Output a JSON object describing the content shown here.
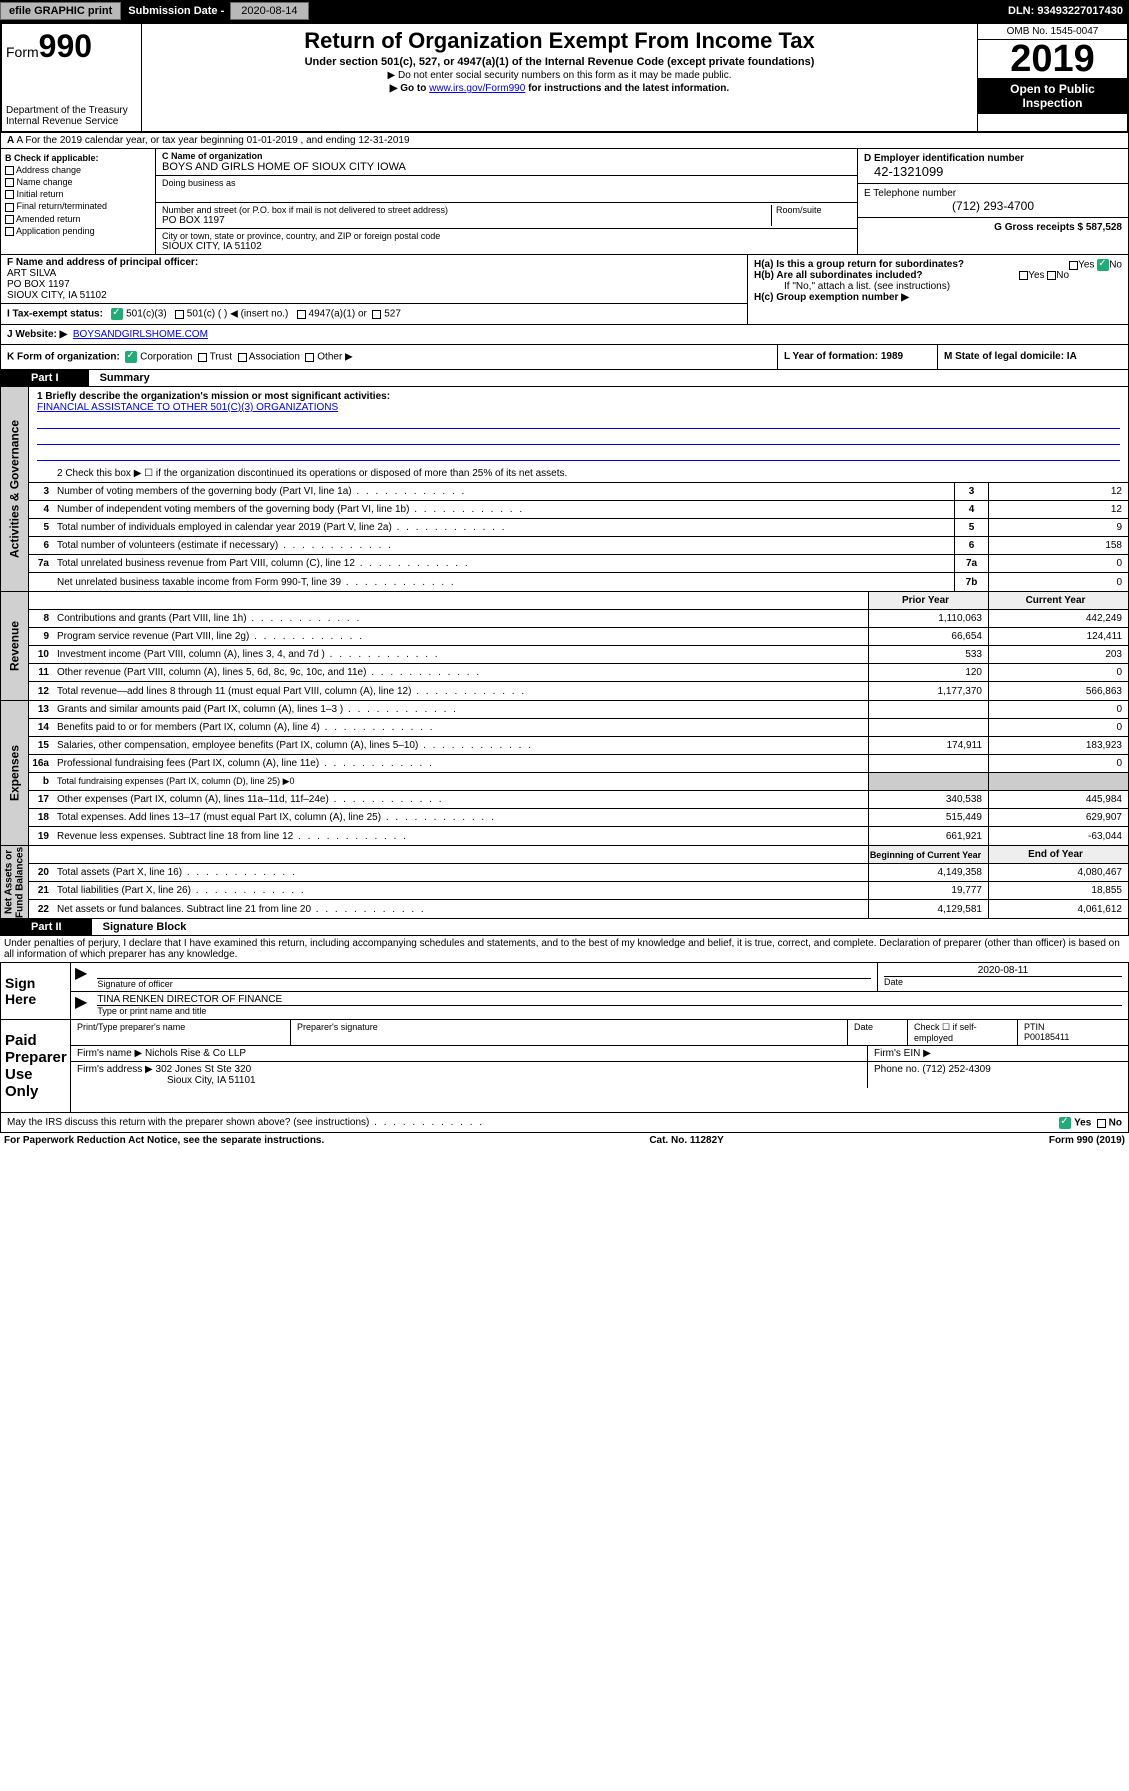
{
  "header": {
    "efile": "efile GRAPHIC print",
    "sub_label": "Submission Date - ",
    "sub_date": "2020-08-14",
    "dln": "DLN: 93493227017430"
  },
  "top": {
    "form_prefix": "Form",
    "form_num": "990",
    "dept": "Department of the Treasury\nInternal Revenue Service",
    "title": "Return of Organization Exempt From Income Tax",
    "subtitle": "Under section 501(c), 527, or 4947(a)(1) of the Internal Revenue Code (except private foundations)",
    "instr1": "▶ Do not enter social security numbers on this form as it may be made public.",
    "instr2_pre": "▶ Go to ",
    "instr2_link": "www.irs.gov/Form990",
    "instr2_post": " for instructions and the latest information.",
    "omb": "OMB No. 1545-0047",
    "year": "2019",
    "open": "Open to Public\nInspection"
  },
  "line_a": "A For the 2019 calendar year, or tax year beginning 01-01-2019    , and ending 12-31-2019",
  "col_b": {
    "hdr": "B Check if applicable:",
    "opts": [
      "Address change",
      "Name change",
      "Initial return",
      "Final return/terminated",
      "Amended return",
      "Application pending"
    ]
  },
  "col_c": {
    "name_lbl": "C Name of organization",
    "name": "BOYS AND GIRLS HOME OF SIOUX CITY IOWA",
    "dba_lbl": "Doing business as",
    "addr_lbl": "Number and street (or P.O. box if mail is not delivered to street address)",
    "room_lbl": "Room/suite",
    "addr": "PO BOX 1197",
    "city_lbl": "City or town, state or province, country, and ZIP or foreign postal code",
    "city": "SIOUX CITY, IA  51102"
  },
  "col_d": {
    "ein_lbl": "D Employer identification number",
    "ein": "42-1321099",
    "tel_lbl": "E Telephone number",
    "tel": "(712) 293-4700",
    "gross_lbl": "G Gross receipts $ 587,528"
  },
  "section_f": {
    "lbl": "F  Name and address of principal officer:",
    "name": "ART SILVA",
    "addr1": "PO BOX 1197",
    "addr2": "SIOUX CITY, IA  51102"
  },
  "section_i": {
    "lbl": "I   Tax-exempt status:",
    "opt1": "501(c)(3)",
    "opt2": "501(c) (   ) ◀ (insert no.)",
    "opt3": "4947(a)(1) or",
    "opt4": "527"
  },
  "section_h": {
    "ha": "H(a)  Is this a group return for subordinates?",
    "hb": "H(b)  Are all subordinates included?",
    "hb_note": "If \"No,\" attach a list. (see instructions)",
    "hc": "H(c)  Group exemption number ▶"
  },
  "j": {
    "lbl": "J   Website: ▶",
    "val": "BOYSANDGIRLSHOME.COM"
  },
  "k": {
    "lbl": "K Form of organization:",
    "opts": [
      "Corporation",
      "Trust",
      "Association",
      "Other ▶"
    ],
    "year_lbl": "L Year of formation: 1989",
    "state_lbl": "M State of legal domicile: IA"
  },
  "part1": {
    "label": "Part I",
    "title": "Summary",
    "mission_lbl": "1  Briefly describe the organization's mission or most significant activities:",
    "mission": "FINANCIAL ASSISTANCE TO OTHER 501(C)(3) ORGANIZATIONS",
    "line2": "2   Check this box ▶ ☐  if the organization discontinued its operations or disposed of more than 25% of its net assets."
  },
  "side_labels": {
    "gov": "Activities & Governance",
    "rev": "Revenue",
    "exp": "Expenses",
    "net": "Net Assets or\nFund Balances"
  },
  "gov_rows": [
    {
      "n": "3",
      "d": "Number of voting members of the governing body (Part VI, line 1a)",
      "bn": "3",
      "v": "12"
    },
    {
      "n": "4",
      "d": "Number of independent voting members of the governing body (Part VI, line 1b)",
      "bn": "4",
      "v": "12"
    },
    {
      "n": "5",
      "d": "Total number of individuals employed in calendar year 2019 (Part V, line 2a)",
      "bn": "5",
      "v": "9"
    },
    {
      "n": "6",
      "d": "Total number of volunteers (estimate if necessary)",
      "bn": "6",
      "v": "158"
    },
    {
      "n": "7a",
      "d": "Total unrelated business revenue from Part VIII, column (C), line 12",
      "bn": "7a",
      "v": "0"
    },
    {
      "n": "",
      "d": "Net unrelated business taxable income from Form 990-T, line 39",
      "bn": "7b",
      "v": "0"
    }
  ],
  "col_hdr": {
    "prior": "Prior Year",
    "current": "Current Year"
  },
  "rev_rows": [
    {
      "n": "8",
      "d": "Contributions and grants (Part VIII, line 1h)",
      "p": "1,110,063",
      "c": "442,249"
    },
    {
      "n": "9",
      "d": "Program service revenue (Part VIII, line 2g)",
      "p": "66,654",
      "c": "124,411"
    },
    {
      "n": "10",
      "d": "Investment income (Part VIII, column (A), lines 3, 4, and 7d )",
      "p": "533",
      "c": "203"
    },
    {
      "n": "11",
      "d": "Other revenue (Part VIII, column (A), lines 5, 6d, 8c, 9c, 10c, and 11e)",
      "p": "120",
      "c": "0"
    },
    {
      "n": "12",
      "d": "Total revenue—add lines 8 through 11 (must equal Part VIII, column (A), line 12)",
      "p": "1,177,370",
      "c": "566,863"
    }
  ],
  "exp_rows": [
    {
      "n": "13",
      "d": "Grants and similar amounts paid (Part IX, column (A), lines 1–3 )",
      "p": "",
      "c": "0"
    },
    {
      "n": "14",
      "d": "Benefits paid to or for members (Part IX, column (A), line 4)",
      "p": "",
      "c": "0"
    },
    {
      "n": "15",
      "d": "Salaries, other compensation, employee benefits (Part IX, column (A), lines 5–10)",
      "p": "174,911",
      "c": "183,923"
    },
    {
      "n": "16a",
      "d": "Professional fundraising fees (Part IX, column (A), line 11e)",
      "p": "",
      "c": "0"
    },
    {
      "n": "b",
      "d": "Total fundraising expenses (Part IX, column (D), line 25) ▶0",
      "p": "—",
      "c": "—"
    },
    {
      "n": "17",
      "d": "Other expenses (Part IX, column (A), lines 11a–11d, 11f–24e)",
      "p": "340,538",
      "c": "445,984"
    },
    {
      "n": "18",
      "d": "Total expenses. Add lines 13–17 (must equal Part IX, column (A), line 25)",
      "p": "515,449",
      "c": "629,907"
    },
    {
      "n": "19",
      "d": "Revenue less expenses. Subtract line 18 from line 12",
      "p": "661,921",
      "c": "-63,044"
    }
  ],
  "net_hdr": {
    "beg": "Beginning of Current Year",
    "end": "End of Year"
  },
  "net_rows": [
    {
      "n": "20",
      "d": "Total assets (Part X, line 16)",
      "p": "4,149,358",
      "c": "4,080,467"
    },
    {
      "n": "21",
      "d": "Total liabilities (Part X, line 26)",
      "p": "19,777",
      "c": "18,855"
    },
    {
      "n": "22",
      "d": "Net assets or fund balances. Subtract line 21 from line 20",
      "p": "4,129,581",
      "c": "4,061,612"
    }
  ],
  "part2": {
    "label": "Part II",
    "title": "Signature Block"
  },
  "perjury": "Under penalties of perjury, I declare that I have examined this return, including accompanying schedules and statements, and to the best of my knowledge and belief, it is true, correct, and complete. Declaration of preparer (other than officer) is based on all information of which preparer has any knowledge.",
  "sign": {
    "here": "Sign\nHere",
    "sig_lbl": "Signature of officer",
    "date": "2020-08-11",
    "date_lbl": "Date",
    "name": "TINA RENKEN  DIRECTOR OF FINANCE",
    "name_lbl": "Type or print name and title"
  },
  "paid": {
    "here": "Paid\nPreparer\nUse Only",
    "prep_name_lbl": "Print/Type preparer's name",
    "prep_sig_lbl": "Preparer's signature",
    "date_lbl": "Date",
    "check_lbl": "Check ☐ if self-employed",
    "ptin_lbl": "PTIN",
    "ptin": "P00185411",
    "firm_name_lbl": "Firm's name    ▶",
    "firm_name": "Nichols Rise & Co LLP",
    "firm_ein_lbl": "Firm's EIN ▶",
    "firm_addr_lbl": "Firm's address ▶",
    "firm_addr": "302 Jones St Ste 320",
    "firm_city": "Sioux City, IA  51101",
    "phone_lbl": "Phone no. (712) 252-4309"
  },
  "discuss": "May the IRS discuss this return with the preparer shown above? (see instructions)",
  "footer": {
    "left": "For Paperwork Reduction Act Notice, see the separate instructions.",
    "mid": "Cat. No. 11282Y",
    "right": "Form 990 (2019)"
  },
  "yes": "Yes",
  "no": "No"
}
